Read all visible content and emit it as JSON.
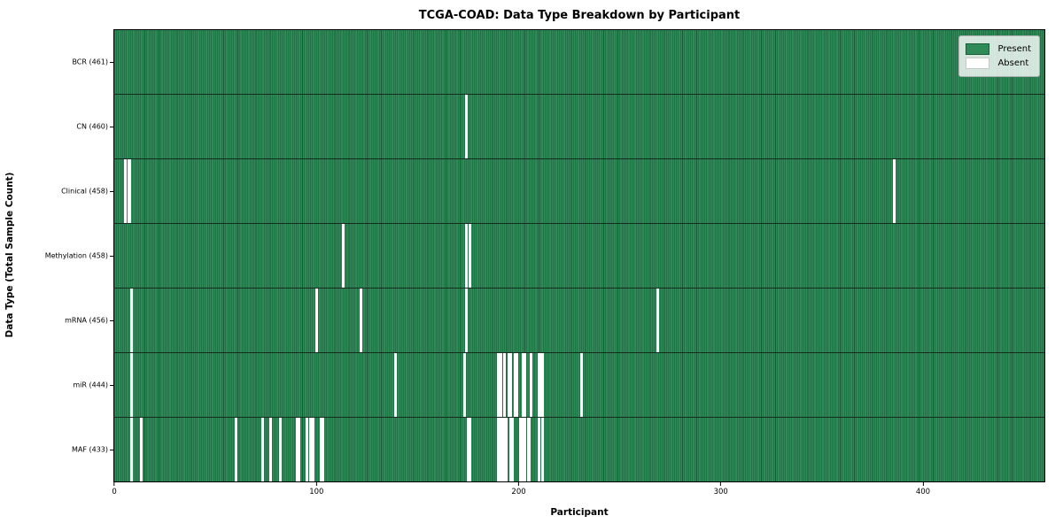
{
  "title": "TCGA-COAD: Data Type Breakdown by Participant",
  "xlabel": "Participant",
  "ylabel": "Data Type (Total Sample Count)",
  "legend": {
    "present_label": "Present",
    "absent_label": "Absent"
  },
  "colors": {
    "present": "#2e8b57",
    "absent": "#ffffff",
    "cell_edge": "#143b26",
    "row_separator": "#142b1d",
    "plot_border": "#000000",
    "legend_bg": "rgba(255,255,255,0.8)"
  },
  "chart_data": {
    "type": "heatmap",
    "title": "TCGA-COAD: Data Type Breakdown by Participant",
    "xlabel": "Participant",
    "ylabel": "Data Type (Total Sample Count)",
    "legend_position": "upper right",
    "n_participants": 461,
    "x_ticks": [
      0,
      100,
      200,
      300,
      400
    ],
    "x_range": [
      -0.5,
      460.5
    ],
    "value_encoding": {
      "present": 1,
      "absent": 0
    },
    "rows": [
      {
        "label": "BCR (461)",
        "data_type": "BCR",
        "present_count": 461,
        "absent_participants": []
      },
      {
        "label": "CN (460)",
        "data_type": "CN",
        "present_count": 460,
        "absent_participants": [
          174
        ]
      },
      {
        "label": "Clinical (458)",
        "data_type": "Clinical",
        "present_count": 458,
        "absent_participants": [
          5,
          7,
          386
        ]
      },
      {
        "label": "Methylation (458)",
        "data_type": "Methylation",
        "present_count": 458,
        "absent_participants": [
          113,
          174,
          176
        ]
      },
      {
        "label": "mRNA (456)",
        "data_type": "mRNA",
        "present_count": 456,
        "absent_participants": [
          8,
          100,
          122,
          174,
          269
        ]
      },
      {
        "label": "miR (444)",
        "data_type": "miR",
        "present_count": 444,
        "absent_participants": [
          8,
          139,
          173,
          190,
          191,
          193,
          195,
          196,
          198,
          199,
          202,
          203,
          206,
          210,
          211,
          212,
          231
        ]
      },
      {
        "label": "MAF (433)",
        "data_type": "MAF",
        "present_count": 433,
        "absent_participants": [
          8,
          13,
          60,
          73,
          77,
          82,
          90,
          91,
          95,
          97,
          98,
          102,
          103,
          175,
          176,
          190,
          191,
          192,
          193,
          194,
          196,
          197,
          201,
          202,
          203,
          205,
          210,
          212
        ]
      }
    ],
    "legend_entries": [
      {
        "label": "Present",
        "color": "#2e8b57"
      },
      {
        "label": "Absent",
        "color": "#ffffff"
      }
    ]
  }
}
